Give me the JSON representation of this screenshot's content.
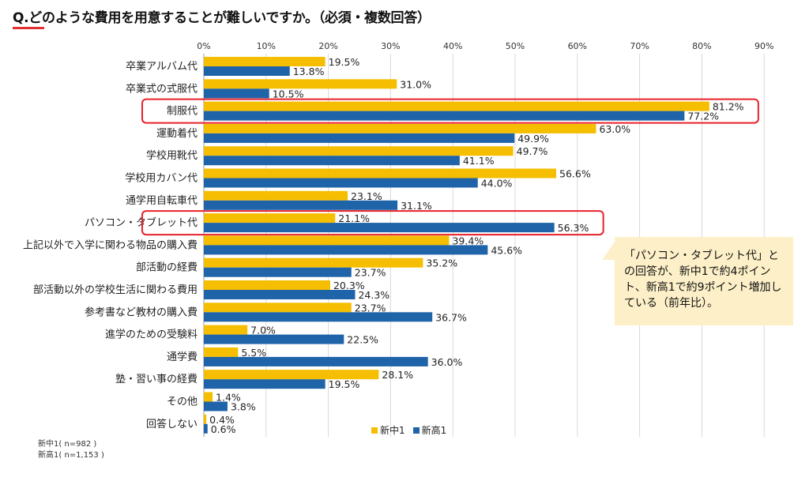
{
  "title": "Q.どのような費用を用意することが難しいですか。（必須・複数回答）",
  "colors": {
    "series1": "#f6be00",
    "series2": "#1f63a8",
    "highlight": "#e8202a",
    "callout_bg": "#fdf0c8"
  },
  "callout_text": "「パソコン・タブレット代」との回答が、新中1で約4ポイント、新高1で約9ポイント増加している（前年比）。",
  "notes": [
    "新中1( n=982 )",
    "新高1( n=1,153 )"
  ],
  "chart_data": {
    "type": "bar",
    "orientation": "horizontal",
    "categories": [
      "卒業アルバム代",
      "卒業式の式服代",
      "制服代",
      "運動着代",
      "学校用靴代",
      "学校用カバン代",
      "通学用自転車代",
      "パソコン・タブレット代",
      "上記以外で入学に関わる物品の購入費",
      "部活動の経費",
      "部活動以外の学校生活に関わる費用",
      "参考書など教材の購入費",
      "進学のための受験料",
      "通学費",
      "塾・習い事の経費",
      "その他",
      "回答しない"
    ],
    "series": [
      {
        "name": "新中1",
        "values": [
          19.5,
          31.0,
          81.2,
          63.0,
          49.7,
          56.6,
          23.1,
          21.1,
          39.4,
          35.2,
          20.3,
          23.7,
          7.0,
          5.5,
          28.1,
          1.4,
          0.4
        ]
      },
      {
        "name": "新高1",
        "values": [
          13.8,
          10.5,
          77.2,
          49.9,
          41.1,
          44.0,
          31.1,
          56.3,
          45.6,
          23.7,
          24.3,
          36.7,
          22.5,
          36.0,
          19.5,
          3.8,
          0.6
        ]
      }
    ],
    "xlim": [
      0,
      90
    ],
    "xticks": [
      "0%",
      "10%",
      "20%",
      "30%",
      "40%",
      "50%",
      "60%",
      "70%",
      "80%",
      "90%"
    ],
    "grid": true,
    "legend": "bottom",
    "highlighted": [
      "制服代",
      "パソコン・タブレット代"
    ]
  }
}
